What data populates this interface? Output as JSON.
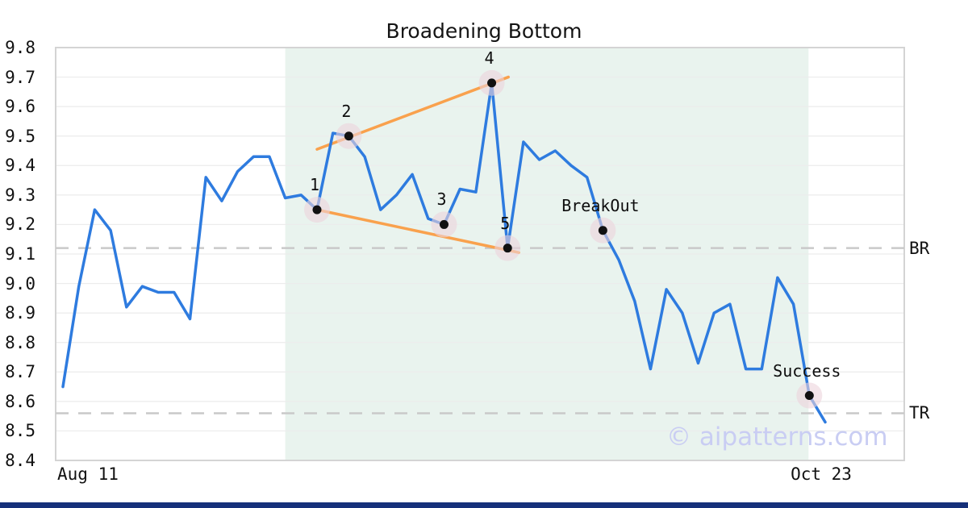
{
  "title": "Broadening Bottom",
  "watermark": "© aipatterns.com",
  "colors": {
    "price_line": "#2e7bdf",
    "trend_line": "#f9a14d",
    "shade": "#e9f3ee",
    "marker_halo": "#ecd3dc",
    "marker_dot": "#111111",
    "dashed_level": "#c9c9c9",
    "grid": "#ececec",
    "frame": "#d4d4d4",
    "watermark": "#c9cdf3",
    "footer_bar": "#16307a"
  },
  "chart_data": {
    "type": "line",
    "title": "Broadening Bottom",
    "xlabel": "",
    "ylabel": "",
    "x_ticks": [
      "Aug 11",
      "Oct 23"
    ],
    "y_tick_labels": [
      "9.8",
      "9.7",
      "9.6",
      "9.5",
      "9.4",
      "9.3",
      "9.2",
      "9.1",
      "9.0",
      "8.9",
      "8.8",
      "8.7",
      "8.6",
      "8.5",
      "8.4"
    ],
    "ylim": [
      8.4,
      9.8
    ],
    "grid": true,
    "series": [
      {
        "name": "price",
        "values": [
          8.65,
          8.99,
          9.25,
          9.18,
          8.92,
          8.99,
          8.97,
          8.97,
          8.88,
          9.36,
          9.28,
          9.38,
          9.43,
          9.43,
          9.29,
          9.3,
          9.25,
          9.51,
          9.5,
          9.43,
          9.25,
          9.3,
          9.37,
          9.22,
          9.2,
          9.32,
          9.31,
          9.68,
          9.12,
          9.48,
          9.42,
          9.45,
          9.4,
          9.36,
          9.18,
          9.08,
          8.94,
          8.71,
          8.98,
          8.9,
          8.73,
          8.9,
          8.93,
          8.71,
          8.71,
          9.02,
          8.93,
          8.62,
          8.53
        ]
      }
    ],
    "trendlines": [
      {
        "name": "upper-broadening-line",
        "i1": 16,
        "v1": 9.455,
        "i2": 28.05,
        "v2": 9.7
      },
      {
        "name": "lower-broadening-line",
        "i1": 16,
        "v1": 9.25,
        "i2": 28.7,
        "v2": 9.105
      }
    ],
    "hlines": [
      {
        "label": "BR",
        "value": 9.12
      },
      {
        "label": "TR",
        "value": 8.56
      }
    ],
    "annotations": [
      {
        "label": "1",
        "index": 16,
        "value": 9.25
      },
      {
        "label": "2",
        "index": 18,
        "value": 9.5
      },
      {
        "label": "3",
        "index": 24,
        "value": 9.2
      },
      {
        "label": "4",
        "index": 27,
        "value": 9.68
      },
      {
        "label": "5",
        "index": 28,
        "value": 9.12
      },
      {
        "label": "BreakOut",
        "index": 34,
        "value": 9.18
      },
      {
        "label": "Success",
        "index": 47,
        "value": 8.62
      }
    ],
    "shaded_region": {
      "from_index": 14,
      "to_index": 46.95
    }
  }
}
